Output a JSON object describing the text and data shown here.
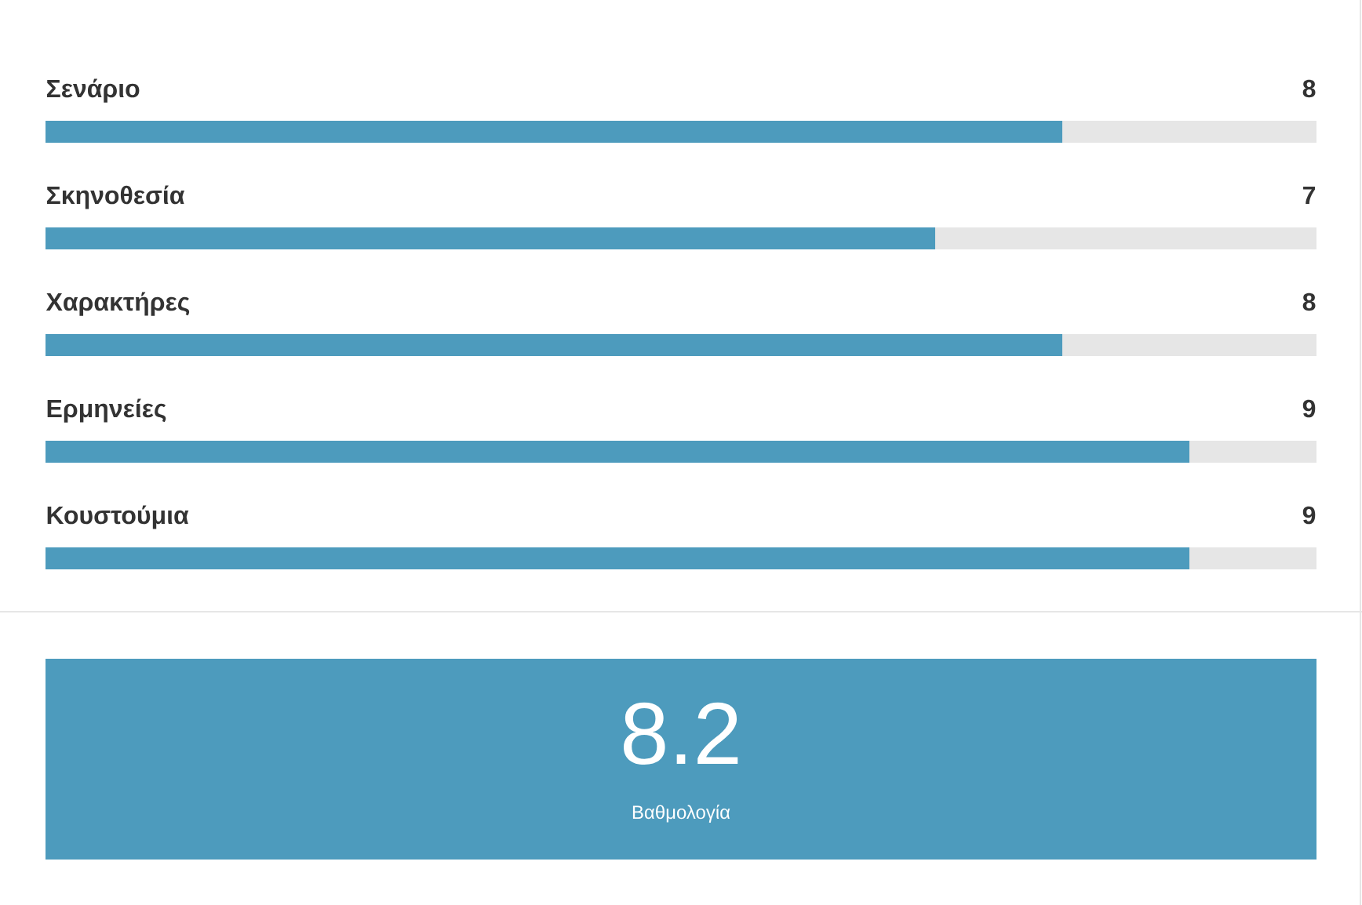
{
  "chart_data": {
    "type": "bar",
    "orientation": "horizontal",
    "categories": [
      "Σενάριο",
      "Σκηνοθεσία",
      "Χαρακτήρες",
      "Ερμηνείες",
      "Κουστούμια"
    ],
    "values": [
      8,
      7,
      8,
      9,
      9
    ],
    "color": "#4d9bbd",
    "xlim": [
      0,
      10
    ],
    "data_labels": true,
    "annotations": [
      "8.2",
      "Βαθμολογία"
    ]
  }
}
